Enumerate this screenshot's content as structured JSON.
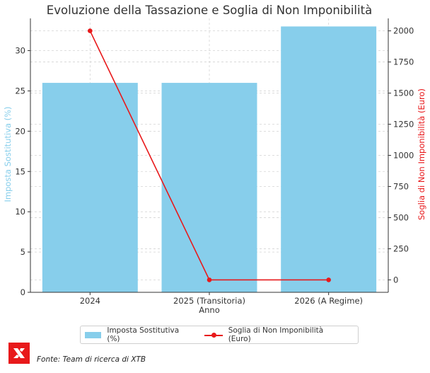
{
  "chart_data": {
    "type": "bar",
    "title": "Evoluzione della Tassazione e Soglia di Non Imponibilità",
    "xlabel": "Anno",
    "ylabel_left": "Imposta Sostitutiva (%)",
    "ylabel_right": "Soglia di Non Imponibilità (Euro)",
    "categories": [
      "2024",
      "2025 (Transitoria)",
      "2026 (A Regime)"
    ],
    "series": [
      {
        "name": "Imposta Sostitutiva (%)",
        "type": "bar",
        "axis": "left",
        "color": "#87ceeb",
        "values": [
          26,
          26,
          33
        ]
      },
      {
        "name": "Soglia di Non Imponibilità (Euro)",
        "type": "line",
        "axis": "right",
        "color": "#e8191b",
        "values": [
          2000,
          0,
          0
        ]
      }
    ],
    "ylim_left": [
      0,
      34
    ],
    "yticks_left": [
      0,
      5,
      10,
      15,
      20,
      25,
      30
    ],
    "ylim_right": [
      -100,
      2100
    ],
    "yticks_right": [
      0,
      250,
      500,
      750,
      1000,
      1250,
      1500,
      1750,
      2000
    ],
    "grid": true,
    "legend_placement": "bottom-center"
  },
  "legend": {
    "bar_label": "Imposta Sostitutiva (%)",
    "line_label": "Soglia di Non Imponibilità (Euro)"
  },
  "footer": {
    "source": "Fonte: Team di ricerca di XTB",
    "logo_icon": "xtb-logo-icon"
  }
}
